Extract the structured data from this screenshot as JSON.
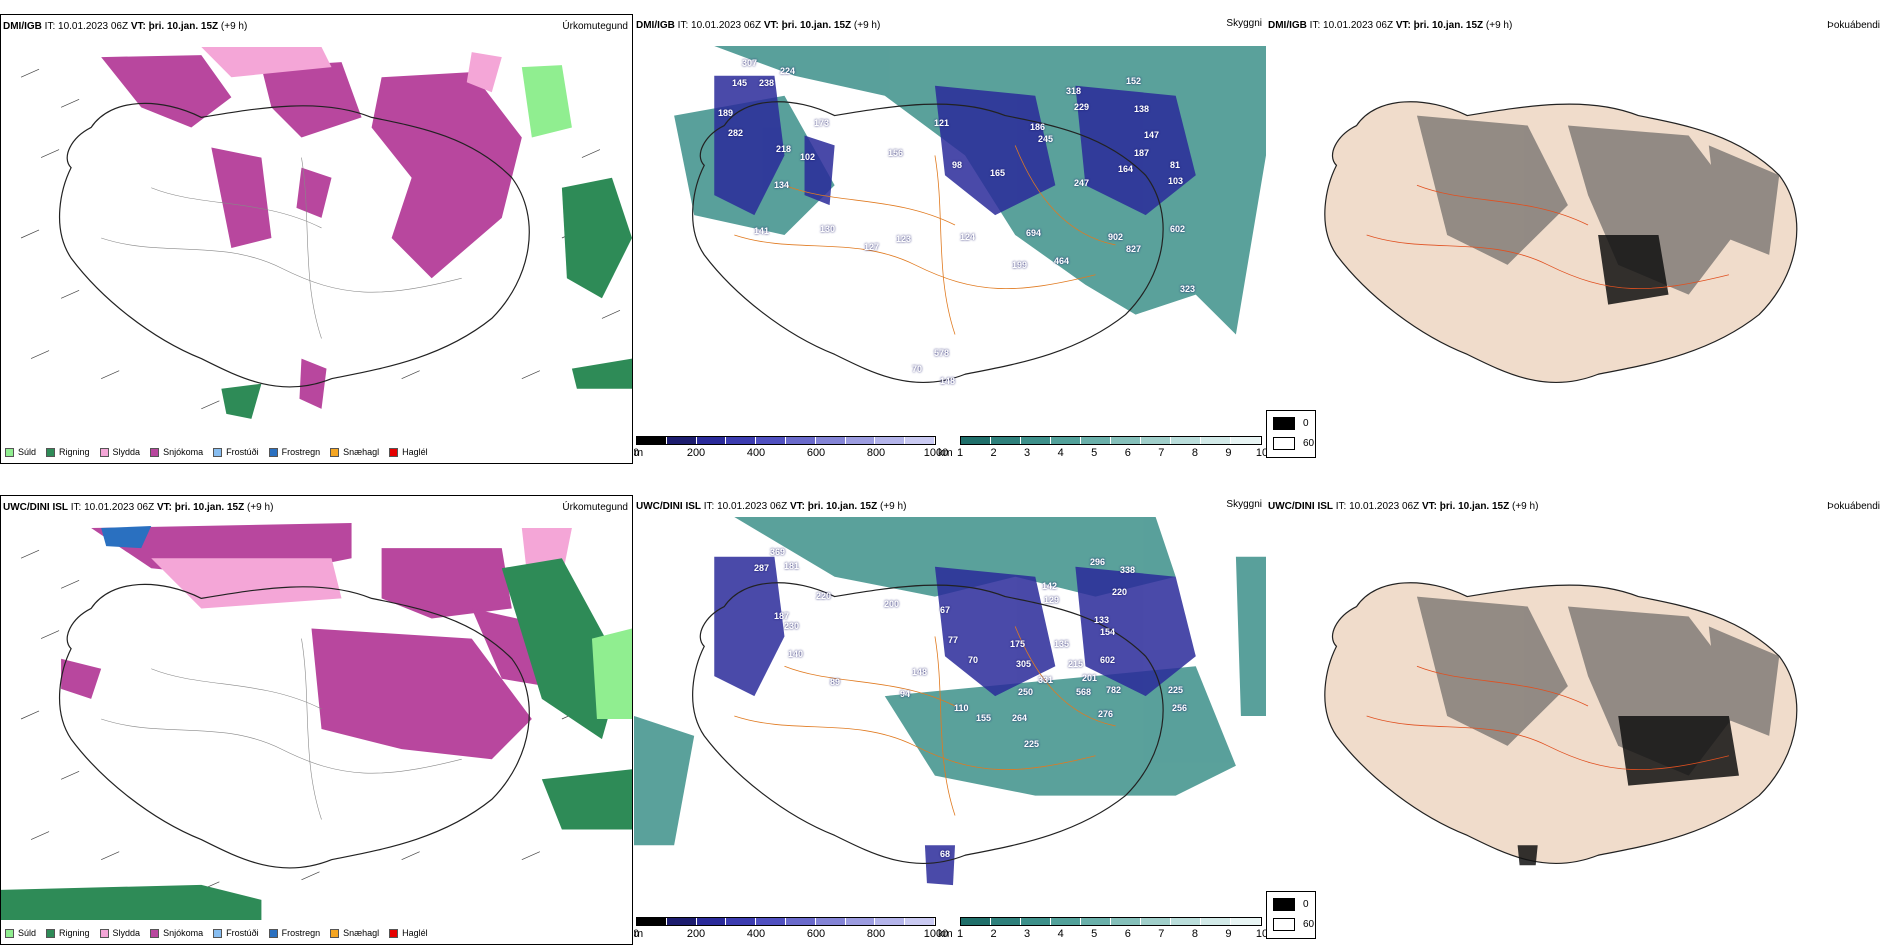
{
  "rows": [
    {
      "precip": {
        "model": "DMI/IGB",
        "it_label": "IT:",
        "it": "10.01.2023 06Z",
        "vt_label": "VT:",
        "vt": "þri. 10.jan. 15Z",
        "lead": "(+9 h)",
        "field": "Úrkomutegund"
      },
      "cloud": {
        "model": "DMI/IGB",
        "it_label": "IT:",
        "it": "10.01.2023 06Z",
        "vt_label": "VT:",
        "vt": "þri. 10.jan. 15Z",
        "lead": "(+9 h)",
        "field": "Skyggni"
      },
      "fog": {
        "model": "DMI/IGB",
        "it_label": "IT:",
        "it": "10.01.2023 06Z",
        "vt_label": "VT:",
        "vt": "þri. 10.jan. 15Z",
        "lead": "(+9 h)",
        "field": "Þokuábendi"
      },
      "ceiling_labels": [
        "145",
        "238",
        "224",
        "307",
        "189",
        "282",
        "173",
        "218",
        "102",
        "134",
        "121",
        "98",
        "156",
        "165",
        "318",
        "229",
        "152",
        "138",
        "186",
        "245",
        "147",
        "187",
        "164",
        "81",
        "103",
        "130",
        "127",
        "123",
        "124",
        "199",
        "464",
        "694",
        "902",
        "827",
        "602",
        "323",
        "141",
        "578",
        "148",
        "70",
        "247"
      ]
    },
    {
      "precip": {
        "model": "UWC/DINI ISL",
        "it_label": "IT:",
        "it": "10.01.2023 06Z",
        "vt_label": "VT:",
        "vt": "þri. 10.jan. 15Z",
        "lead": "(+9 h)",
        "field": "Úrkomutegund"
      },
      "cloud": {
        "model": "UWC/DINI ISL",
        "it_label": "IT:",
        "it": "10.01.2023 06Z",
        "vt_label": "VT:",
        "vt": "þri. 10.jan. 15Z",
        "lead": "(+9 h)",
        "field": "Skyggni"
      },
      "fog": {
        "model": "UWC/DINI ISL",
        "it_label": "IT:",
        "it": "10.01.2023 06Z",
        "vt_label": "VT:",
        "vt": "þri. 10.jan. 15Z",
        "lead": "(+9 h)",
        "field": "Þokuábendi"
      },
      "ceiling_labels": [
        "369",
        "287",
        "181",
        "220",
        "187",
        "230",
        "140",
        "89",
        "94",
        "200",
        "67",
        "77",
        "70",
        "175",
        "305",
        "331",
        "250",
        "215",
        "201",
        "568",
        "782",
        "225",
        "256",
        "276",
        "264",
        "155",
        "225",
        "148",
        "110",
        "135",
        "142",
        "129",
        "133",
        "154",
        "296",
        "338",
        "220",
        "602",
        "68"
      ]
    }
  ],
  "precip_legend": [
    {
      "label": "Súld",
      "color": "#90ee90"
    },
    {
      "label": "Rigning",
      "color": "#2e8b57"
    },
    {
      "label": "Slydda",
      "color": "#f4a6d7"
    },
    {
      "label": "Snjókoma",
      "color": "#b8479e"
    },
    {
      "label": "Frostúði",
      "color": "#87bdf0"
    },
    {
      "label": "Frostregn",
      "color": "#2a70c0"
    },
    {
      "label": "Snæhagl",
      "color": "#f5a623"
    },
    {
      "label": "Haglél",
      "color": "#e60000"
    }
  ],
  "cloud_height_bar": {
    "unit": "m",
    "ticks": [
      "0",
      "200",
      "400",
      "600",
      "800",
      "1000"
    ],
    "colors": [
      "#000000",
      "#1c1c6e",
      "#2a2a9a",
      "#3c3cb0",
      "#5050c0",
      "#6a6acb",
      "#8484d6",
      "#9c9ce0",
      "#b4b4ea",
      "#cacaf2"
    ]
  },
  "visibility_bar": {
    "unit": "km",
    "ticks": [
      "1",
      "2",
      "3",
      "4",
      "5",
      "6",
      "7",
      "8",
      "9",
      "10"
    ],
    "colors": [
      "#1f6f6a",
      "#2e807b",
      "#3d908a",
      "#52a19a",
      "#6ab0aa",
      "#85c0ba",
      "#a0cfca",
      "#badedb",
      "#d2eae8",
      "#e8f5f4"
    ]
  },
  "fog_legend": [
    {
      "label": "0",
      "color": "#000000"
    },
    {
      "label": "60",
      "color": "#ffffff"
    }
  ]
}
